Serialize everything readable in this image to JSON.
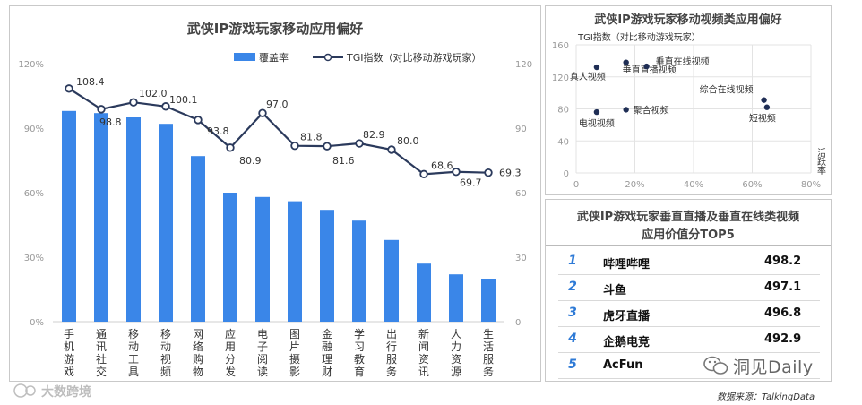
{
  "left_chart": {
    "title": "武侠IP游戏玩家移动应用偏好",
    "legend": {
      "bar_label": "覆盖率",
      "line_label": "TGI指数（对比移动游戏玩家）"
    }
  },
  "scatter_chart": {
    "title": "武侠IP游戏玩家移动视频类应用偏好",
    "ylabel": "TGI指数（对比移动游戏玩家）",
    "xlabel": "活跃率"
  },
  "ranking": {
    "title_line1": "武侠IP游戏玩家垂直直播及垂直在线类视频",
    "title_line2": "应用价值分TOP5",
    "items": [
      {
        "rank": "1",
        "name": "哔哩哔哩",
        "score": "498.2"
      },
      {
        "rank": "2",
        "name": "斗鱼",
        "score": "497.1"
      },
      {
        "rank": "3",
        "name": "虎牙直播",
        "score": "496.8"
      },
      {
        "rank": "4",
        "name": "企鹅电竞",
        "score": "492.9"
      },
      {
        "rank": "5",
        "name": "AcFun",
        "score": ""
      }
    ]
  },
  "footer": {
    "source": "数据来源：TalkingData",
    "watermark_left": "大数跨境",
    "watermark_right": "洞见Daily"
  },
  "colors": {
    "bar": "#3a86e8",
    "line": "#2b3a5c",
    "title": "#444444",
    "rank_number": "#2e7ad6"
  },
  "chart_data": [
    {
      "type": "bar",
      "title": "武侠IP游戏玩家移动应用偏好",
      "categories": [
        "手机游戏",
        "通讯社交",
        "移动工具",
        "移动视频",
        "网络购物",
        "应用分发",
        "电子阅读",
        "图片摄影",
        "金融理财",
        "学习教育",
        "出行服务",
        "新闻资讯",
        "人力资源",
        "生活服务"
      ],
      "series": [
        {
          "name": "覆盖率",
          "type": "bar",
          "axis": "left",
          "values": [
            98,
            97,
            95,
            92,
            77,
            60,
            58,
            56,
            52,
            47,
            38,
            27,
            22,
            20
          ]
        },
        {
          "name": "TGI指数（对比移动游戏玩家）",
          "type": "line",
          "axis": "right",
          "values": [
            108.4,
            98.8,
            102.0,
            100.1,
            93.8,
            80.9,
            97.0,
            81.8,
            81.6,
            82.9,
            80.0,
            68.6,
            69.7,
            69.3
          ],
          "labels": [
            "108.4",
            "98.8",
            "102.0",
            "100.1",
            "93.8",
            "80.9",
            "97.0",
            "81.8",
            "81.6",
            "82.9",
            "80.0",
            "68.6",
            "69.7",
            "69.3"
          ]
        }
      ],
      "y_left": {
        "ticks": [
          "0%",
          "30%",
          "60%",
          "90%",
          "120%"
        ],
        "ylim": [
          0,
          120
        ]
      },
      "y_right": {
        "ticks": [
          "0",
          "30",
          "60",
          "90",
          "120"
        ],
        "ylim": [
          0,
          120
        ]
      },
      "grid": false,
      "legend": "top-right"
    },
    {
      "type": "scatter",
      "title": "武侠IP游戏玩家移动视频类应用偏好",
      "xlabel": "活跃率",
      "ylabel": "TGI指数（对比移动游戏玩家）",
      "xlim": [
        0,
        80
      ],
      "ylim": [
        0,
        160
      ],
      "x_ticks": [
        "0",
        "20%",
        "40%",
        "60%",
        "80%"
      ],
      "y_ticks": [
        "0",
        "40",
        "80",
        "120",
        "160"
      ],
      "points": [
        {
          "label": "真人视频",
          "x": 7,
          "y": 132
        },
        {
          "label": "垂直直播视频",
          "x": 17,
          "y": 138
        },
        {
          "label": "垂直在线视频",
          "x": 24,
          "y": 133
        },
        {
          "label": "电视视频",
          "x": 7,
          "y": 76
        },
        {
          "label": "聚合视频",
          "x": 17,
          "y": 79
        },
        {
          "label": "综合在线视频",
          "x": 64,
          "y": 91
        },
        {
          "label": "短视频",
          "x": 65,
          "y": 82
        }
      ],
      "grid": true
    }
  ]
}
